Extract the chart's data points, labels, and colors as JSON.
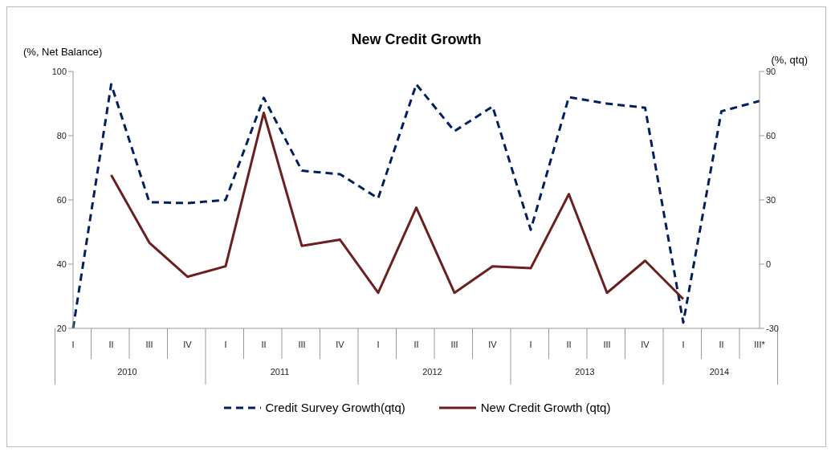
{
  "chart_data": {
    "type": "line",
    "title": "New Credit Growth",
    "ylabel": "(%, Net Balance)",
    "y2label": "(%, qtq)",
    "categories": [
      "I",
      "II",
      "III",
      "IV",
      "I",
      "II",
      "III",
      "IV",
      "I",
      "II",
      "III",
      "IV",
      "I",
      "II",
      "III",
      "IV",
      "I",
      "II",
      "III*"
    ],
    "annotations": [
      "2010",
      "2011",
      "2012",
      "2013",
      "2014"
    ],
    "series": [
      {
        "name": "Credit Survey Growth(qtq)",
        "color": "#002060",
        "line_style": "dashed",
        "values": [
          20,
          96,
          59.3,
          59,
          60,
          91.8,
          69.1,
          68,
          60.5,
          96,
          81.4,
          89.1,
          50.7,
          92,
          90,
          88.7,
          21.8,
          87.6,
          90.8
        ]
      },
      {
        "name": "New Credit Growth (qtq)",
        "color": "#6b1f1f",
        "axis": "y2",
        "line_style": "solid",
        "values": [
          null,
          41.6,
          10,
          -5.9,
          -1,
          70.7,
          8.5,
          11.4,
          -13.4,
          26.4,
          -13.4,
          -1,
          -1.9,
          32.7,
          -13.4,
          1.6,
          -16.3,
          null,
          null
        ]
      }
    ],
    "ylim": [
      20,
      100
    ],
    "yticks": [
      20,
      40,
      60,
      80,
      100
    ],
    "y2lim": [
      -30,
      90
    ],
    "y2ticks": [
      -30,
      0,
      30,
      60,
      90
    ],
    "grid": false,
    "legend": "bottom"
  }
}
